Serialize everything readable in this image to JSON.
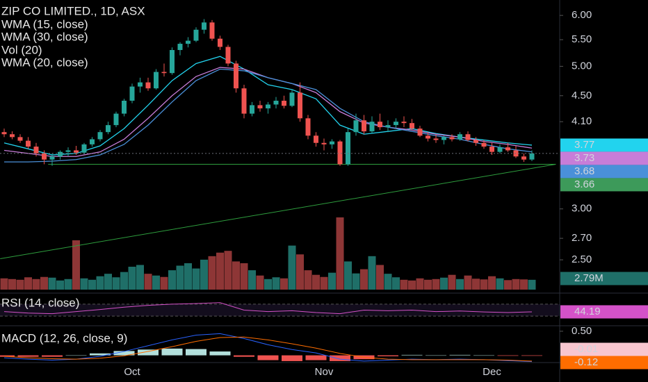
{
  "chart_data": {
    "type": "candlestick",
    "title": "ZIP CO LIMITED., 1D, ASX",
    "categories": [
      null,
      null,
      null,
      null,
      null,
      null,
      null,
      null,
      null,
      null,
      null,
      null,
      null,
      null,
      null,
      null,
      "Oct",
      null,
      null,
      null,
      null,
      null,
      null,
      null,
      null,
      null,
      null,
      null,
      null,
      null,
      null,
      null,
      null,
      null,
      null,
      null,
      null,
      null,
      null,
      null,
      "Nov",
      null,
      null,
      null,
      null,
      null,
      null,
      null,
      null,
      null,
      null,
      null,
      null,
      null,
      null,
      null,
      null,
      null,
      null,
      null,
      null,
      "Dec",
      null,
      null,
      null,
      null,
      null
    ],
    "ohlc": [
      [
        3.95,
        4.0,
        3.88,
        3.92
      ],
      [
        3.92,
        3.96,
        3.85,
        3.88
      ],
      [
        3.88,
        3.92,
        3.8,
        3.83
      ],
      [
        3.83,
        3.88,
        3.72,
        3.75
      ],
      [
        3.75,
        3.8,
        3.62,
        3.66
      ],
      [
        3.66,
        3.7,
        3.52,
        3.58
      ],
      [
        3.58,
        3.66,
        3.5,
        3.62
      ],
      [
        3.62,
        3.7,
        3.58,
        3.68
      ],
      [
        3.68,
        3.74,
        3.62,
        3.7
      ],
      [
        3.7,
        3.76,
        3.64,
        3.67
      ],
      [
        3.67,
        3.8,
        3.65,
        3.78
      ],
      [
        3.78,
        3.88,
        3.75,
        3.85
      ],
      [
        3.85,
        3.98,
        3.82,
        3.95
      ],
      [
        3.95,
        4.1,
        3.92,
        4.05
      ],
      [
        4.05,
        4.25,
        4.02,
        4.22
      ],
      [
        4.22,
        4.45,
        4.18,
        4.42
      ],
      [
        4.42,
        4.7,
        4.38,
        4.65
      ],
      [
        4.65,
        4.8,
        4.55,
        4.72
      ],
      [
        4.72,
        4.8,
        4.58,
        4.62
      ],
      [
        4.62,
        4.95,
        4.6,
        4.9
      ],
      [
        4.9,
        5.05,
        4.82,
        4.88
      ],
      [
        4.88,
        5.35,
        4.85,
        5.3
      ],
      [
        5.3,
        5.45,
        5.2,
        5.42
      ],
      [
        5.42,
        5.55,
        5.35,
        5.48
      ],
      [
        5.48,
        5.75,
        5.45,
        5.7
      ],
      [
        5.7,
        5.92,
        5.62,
        5.85
      ],
      [
        5.85,
        5.9,
        5.48,
        5.52
      ],
      [
        5.52,
        5.58,
        5.3,
        5.36
      ],
      [
        5.36,
        5.4,
        5.0,
        5.05
      ],
      [
        5.05,
        5.1,
        4.55,
        4.62
      ],
      [
        4.62,
        4.68,
        4.15,
        4.22
      ],
      [
        4.22,
        4.4,
        4.18,
        4.35
      ],
      [
        4.35,
        4.42,
        4.25,
        4.3
      ],
      [
        4.3,
        4.4,
        4.22,
        4.36
      ],
      [
        4.36,
        4.48,
        4.3,
        4.42
      ],
      [
        4.42,
        4.5,
        4.3,
        4.34
      ],
      [
        4.34,
        4.6,
        4.32,
        4.55
      ],
      [
        4.55,
        4.72,
        4.1,
        4.15
      ],
      [
        4.15,
        4.2,
        3.85,
        3.9
      ],
      [
        3.9,
        3.95,
        3.75,
        3.8
      ],
      [
        3.8,
        3.86,
        3.7,
        3.78
      ],
      [
        3.78,
        3.85,
        3.72,
        3.82
      ],
      [
        3.82,
        3.84,
        3.5,
        3.52
      ],
      [
        3.52,
        4.0,
        3.5,
        3.95
      ],
      [
        3.95,
        4.22,
        3.9,
        4.12
      ],
      [
        4.12,
        4.2,
        3.92,
        3.96
      ],
      [
        3.96,
        4.18,
        3.94,
        4.1
      ],
      [
        4.1,
        4.22,
        3.98,
        4.02
      ],
      [
        4.02,
        4.12,
        3.95,
        4.05
      ],
      [
        4.05,
        4.15,
        4.0,
        4.1
      ],
      [
        4.1,
        4.18,
        4.02,
        4.08
      ],
      [
        4.08,
        4.14,
        3.98,
        4.0
      ],
      [
        4.0,
        4.04,
        3.88,
        3.9
      ],
      [
        3.9,
        3.95,
        3.82,
        3.86
      ],
      [
        3.86,
        3.92,
        3.8,
        3.84
      ],
      [
        3.84,
        3.9,
        3.78,
        3.88
      ],
      [
        3.88,
        3.92,
        3.82,
        3.85
      ],
      [
        3.85,
        3.95,
        3.83,
        3.92
      ],
      [
        3.92,
        3.96,
        3.82,
        3.84
      ],
      [
        3.84,
        3.88,
        3.76,
        3.8
      ],
      [
        3.8,
        3.84,
        3.72,
        3.75
      ],
      [
        3.75,
        3.8,
        3.64,
        3.68
      ],
      [
        3.68,
        3.78,
        3.66,
        3.74
      ],
      [
        3.74,
        3.8,
        3.68,
        3.7
      ],
      [
        3.7,
        3.76,
        3.6,
        3.62
      ],
      [
        3.62,
        3.66,
        3.55,
        3.58
      ],
      [
        3.58,
        3.7,
        3.56,
        3.66
      ]
    ],
    "up_color": "#26a69a",
    "down_color": "#ef5350",
    "log_scale": true,
    "ylim": [
      2.23,
      6.34
    ],
    "yticks": [
      {
        "value": 6,
        "label": "6.00"
      },
      {
        "value": 5.5,
        "label": "5.50"
      },
      {
        "value": 5,
        "label": "5.00"
      },
      {
        "value": 4.5,
        "label": "4.50"
      },
      {
        "value": 4.1,
        "label": "4.10"
      },
      {
        "value": 3,
        "label": "3.00"
      },
      {
        "value": 2.7,
        "label": "2.70"
      },
      {
        "value": 2.5,
        "label": "2.50"
      }
    ],
    "overlays": [
      {
        "name": "WMA (15, close)",
        "color": "#22d3ee",
        "x": [
          0,
          3,
          6,
          9,
          12,
          15,
          18,
          21,
          24,
          27,
          30,
          33,
          36,
          39,
          42,
          45,
          48,
          51,
          54,
          57,
          60,
          63,
          66
        ],
        "values": [
          3.8,
          3.72,
          3.64,
          3.66,
          3.76,
          4.0,
          4.35,
          4.75,
          5.05,
          5.18,
          4.95,
          4.68,
          4.6,
          4.45,
          4.05,
          3.92,
          3.96,
          4.0,
          3.93,
          3.88,
          3.84,
          3.8,
          3.77
        ]
      },
      {
        "name": "WMA (30, close)",
        "color": "#c77dd8",
        "x": [
          0,
          3,
          6,
          9,
          12,
          15,
          18,
          21,
          24,
          27,
          30,
          33,
          36,
          39,
          42,
          45,
          48,
          51,
          54,
          57,
          60,
          63,
          66
        ],
        "values": [
          3.7,
          3.66,
          3.62,
          3.62,
          3.68,
          3.85,
          4.15,
          4.5,
          4.82,
          4.98,
          4.95,
          4.8,
          4.7,
          4.55,
          4.25,
          4.08,
          4.02,
          3.98,
          3.92,
          3.88,
          3.82,
          3.78,
          3.73
        ]
      },
      {
        "name": "WMA (20, close)",
        "color": "#4a90d9",
        "x": [
          0,
          3,
          6,
          9,
          12,
          15,
          18,
          21,
          24,
          27,
          30,
          33,
          36,
          39,
          42,
          45,
          48,
          51,
          54,
          57,
          60,
          63,
          66
        ],
        "values": [
          3.55,
          3.55,
          3.56,
          3.58,
          3.64,
          3.78,
          4.05,
          4.4,
          4.75,
          4.95,
          4.92,
          4.8,
          4.7,
          4.6,
          4.3,
          4.1,
          4.02,
          3.96,
          3.9,
          3.85,
          3.78,
          3.72,
          3.68
        ]
      }
    ],
    "last_price_color": "#3d9a5a",
    "volume": {
      "name": "Vol (20)",
      "up_color": "#1f6f68",
      "down_color": "#8e3636",
      "label_color": "#1f6f68",
      "values": [
        3200000.0,
        3000000.0,
        2800000.0,
        3500000.0,
        3000000.0,
        3600000.0,
        3400000.0,
        2600000.0,
        3000000.0,
        14000000.0,
        3200000.0,
        2800000.0,
        3800000.0,
        4500000.0,
        3500000.0,
        5000000.0,
        6500000.0,
        7000000.0,
        4500000.0,
        4000000.0,
        3600000.0,
        5500000.0,
        6800000.0,
        7500000.0,
        6000000.0,
        8500000.0,
        9500000.0,
        10500000.0,
        11000000.0,
        8000000.0,
        7500000.0,
        5500000.0,
        4000000.0,
        3000000.0,
        3500000.0,
        3200000.0,
        12500000.0,
        10000000.0,
        5500000.0,
        4200000.0,
        3600000.0,
        4800000.0,
        20500000.0,
        8000000.0,
        4600000.0,
        5800000.0,
        9500000.0,
        7000000.0,
        4500000.0,
        3500000.0,
        2800000.0,
        2600000.0,
        3200000.0,
        2800000.0,
        3000000.0,
        3400000.0,
        4200000.0,
        3000000.0,
        4000000.0,
        3100000.0,
        2900000.0,
        3800000.0,
        3200000.0,
        2700000.0,
        3000000.0,
        2900000.0,
        2790000.0
      ],
      "last_value_label": "2.79M"
    },
    "support_line": {
      "color": "#2e9e3e",
      "x": [
        5.5,
        69
      ],
      "values": [
        3.52,
        3.52
      ]
    },
    "trendline": {
      "color": "#2e9e3e",
      "x": [
        -0.5,
        69
      ],
      "values": [
        2.51,
        3.52
      ]
    },
    "rsi": {
      "name": "RSI (14, close)",
      "color": "#d452c8",
      "ylim": [
        0,
        100
      ],
      "band": [
        30,
        70
      ],
      "x": [
        0,
        3,
        6,
        9,
        12,
        15,
        18,
        21,
        24,
        27,
        30,
        33,
        36,
        39,
        42,
        45,
        48,
        51,
        54,
        57,
        60,
        63,
        66
      ],
      "values": [
        45,
        40,
        38,
        45,
        52,
        60,
        66,
        70,
        72,
        75,
        50,
        45,
        48,
        42,
        38,
        50,
        48,
        50,
        45,
        47,
        44,
        42,
        44.19
      ]
    },
    "macd": {
      "name": "MACD (12, 26, close, 9)",
      "ylim": [
        -0.15,
        0.6
      ],
      "yticks": [
        {
          "value": 0.5,
          "label": "0.50"
        }
      ],
      "x": [
        0,
        3,
        6,
        9,
        12,
        15,
        18,
        21,
        24,
        27,
        30,
        33,
        36,
        39,
        42,
        45,
        48,
        51,
        54,
        57,
        60,
        63,
        66
      ],
      "macd": {
        "color": "#2962ff",
        "values": [
          -0.05,
          -0.08,
          -0.1,
          -0.08,
          -0.02,
          0.08,
          0.2,
          0.32,
          0.42,
          0.45,
          0.35,
          0.22,
          0.12,
          0.05,
          -0.08,
          -0.12,
          -0.1,
          -0.08,
          -0.09,
          -0.08,
          -0.09,
          -0.11,
          -0.13
        ]
      },
      "signal": {
        "color": "#ff6d00",
        "values": [
          -0.02,
          -0.05,
          -0.07,
          -0.08,
          -0.06,
          -0.01,
          0.08,
          0.18,
          0.29,
          0.37,
          0.38,
          0.32,
          0.24,
          0.15,
          0.04,
          -0.04,
          -0.08,
          -0.09,
          -0.09,
          -0.09,
          -0.09,
          -0.1,
          -0.12
        ]
      },
      "histogram": {
        "up_color": "#b2dfdb",
        "down_color": "#ef5350",
        "label_color": "#f8c6cf",
        "values": [
          -0.03,
          -0.03,
          -0.03,
          0.0,
          0.04,
          0.09,
          0.12,
          0.14,
          0.13,
          0.08,
          -0.03,
          -0.1,
          -0.12,
          -0.1,
          -0.12,
          -0.08,
          -0.02,
          0.01,
          0.0,
          0.01,
          0.0,
          -0.01,
          -0.01
        ]
      }
    }
  }
}
